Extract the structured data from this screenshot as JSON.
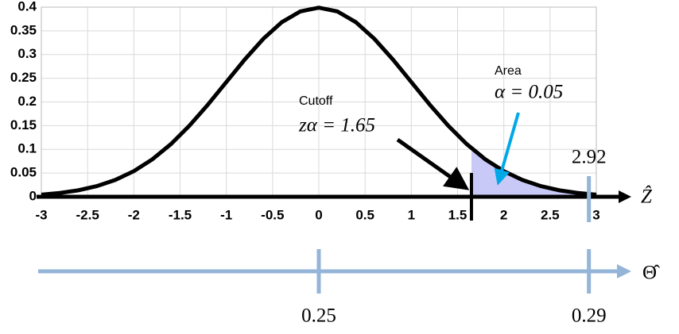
{
  "chart_data": {
    "type": "line",
    "x": [
      -3,
      -2.8,
      -2.6,
      -2.4,
      -2.2,
      -2,
      -1.8,
      -1.6,
      -1.4,
      -1.2,
      -1,
      -0.8,
      -0.6,
      -0.4,
      -0.2,
      0,
      0.2,
      0.4,
      0.6,
      0.8,
      1,
      1.2,
      1.4,
      1.6,
      1.8,
      2,
      2.2,
      2.4,
      2.6,
      2.8,
      3
    ],
    "values": [
      0.0044,
      0.0079,
      0.0136,
      0.0224,
      0.0355,
      0.054,
      0.079,
      0.1109,
      0.1497,
      0.1942,
      0.242,
      0.2897,
      0.3332,
      0.3683,
      0.391,
      0.3989,
      0.391,
      0.3683,
      0.3332,
      0.2897,
      0.242,
      0.1942,
      0.1497,
      0.1109,
      0.079,
      0.054,
      0.0355,
      0.0224,
      0.0136,
      0.0079,
      0.0044
    ],
    "color": "#000000",
    "shade": {
      "x": [
        1.65,
        1.8,
        2,
        2.2,
        2.4,
        2.6,
        2.8,
        3
      ],
      "values": [
        0.1023,
        0.079,
        0.054,
        0.0355,
        0.0224,
        0.0136,
        0.0079,
        0.0044
      ],
      "color": "#c9c9f7"
    },
    "xlim": [
      -3,
      3
    ],
    "ylim": [
      0,
      0.4
    ],
    "xticks": [
      -3,
      -2.5,
      -2,
      -1.5,
      -1,
      -0.5,
      0,
      0.5,
      1,
      1.5,
      2,
      2.5,
      3
    ],
    "yticks": [
      0,
      0.05,
      0.1,
      0.15,
      0.2,
      0.25,
      0.3,
      0.35,
      0.4
    ],
    "grid": true,
    "x_axis_label": "Ẑ",
    "cutoff": {
      "label": "Cutoff",
      "text": "zα = 1.65",
      "value": 1.65
    },
    "area": {
      "label": "Area",
      "text": "α = 0.05"
    },
    "marker": 2.92,
    "theta_axis": {
      "label": "Θ̂",
      "positions": [
        0,
        2.92
      ],
      "labels": [
        "0.25",
        "0.29"
      ],
      "color": "#94b4d8"
    }
  }
}
